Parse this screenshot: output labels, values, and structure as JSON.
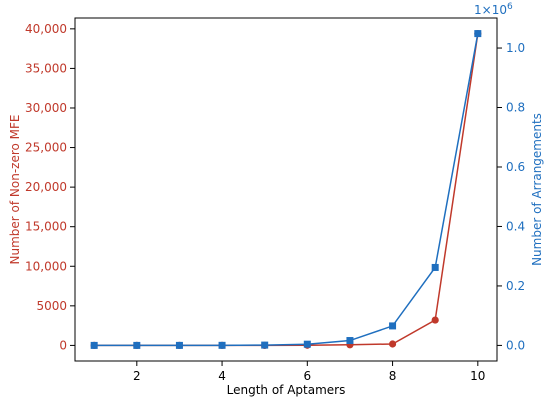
{
  "chart_data": {
    "type": "line",
    "x": [
      1,
      2,
      3,
      4,
      5,
      6,
      7,
      8,
      9,
      10
    ],
    "xlabel": "Length of Aptamers",
    "xlim": [
      0.55,
      10.45
    ],
    "xticks": [
      2,
      4,
      6,
      8,
      10
    ],
    "series": [
      {
        "axis": "left",
        "color": "#c0392b",
        "marker": "circle",
        "values": [
          0,
          0,
          0,
          0,
          0,
          20,
          80,
          180,
          3200,
          39400
        ]
      },
      {
        "axis": "right",
        "color": "#1f6fbf",
        "marker": "square",
        "values": [
          4,
          16,
          64,
          256,
          1024,
          4096,
          16384,
          65536,
          262144,
          1048576
        ]
      }
    ],
    "left_axis": {
      "label": "Number of Non-zero MFE",
      "color": "#c0392b",
      "ylim": [
        -1970,
        41370
      ],
      "ticks": [
        0,
        5000,
        10000,
        15000,
        20000,
        25000,
        30000,
        35000,
        40000
      ],
      "tick_labels": [
        "0",
        "5000",
        "10,000",
        "15,000",
        "20,000",
        "25,000",
        "30,000",
        "35,000",
        "40,000"
      ]
    },
    "right_axis": {
      "label": "Number of Arrangements",
      "color": "#1f6fbf",
      "ylim": [
        -52425,
        1100996
      ],
      "scale_label": "1×10",
      "scale_exponent": "6",
      "ticks": [
        0,
        200000,
        400000,
        600000,
        800000,
        1000000
      ],
      "tick_labels": [
        "0.0",
        "0.2",
        "0.4",
        "0.6",
        "0.8",
        "1.0"
      ]
    }
  }
}
